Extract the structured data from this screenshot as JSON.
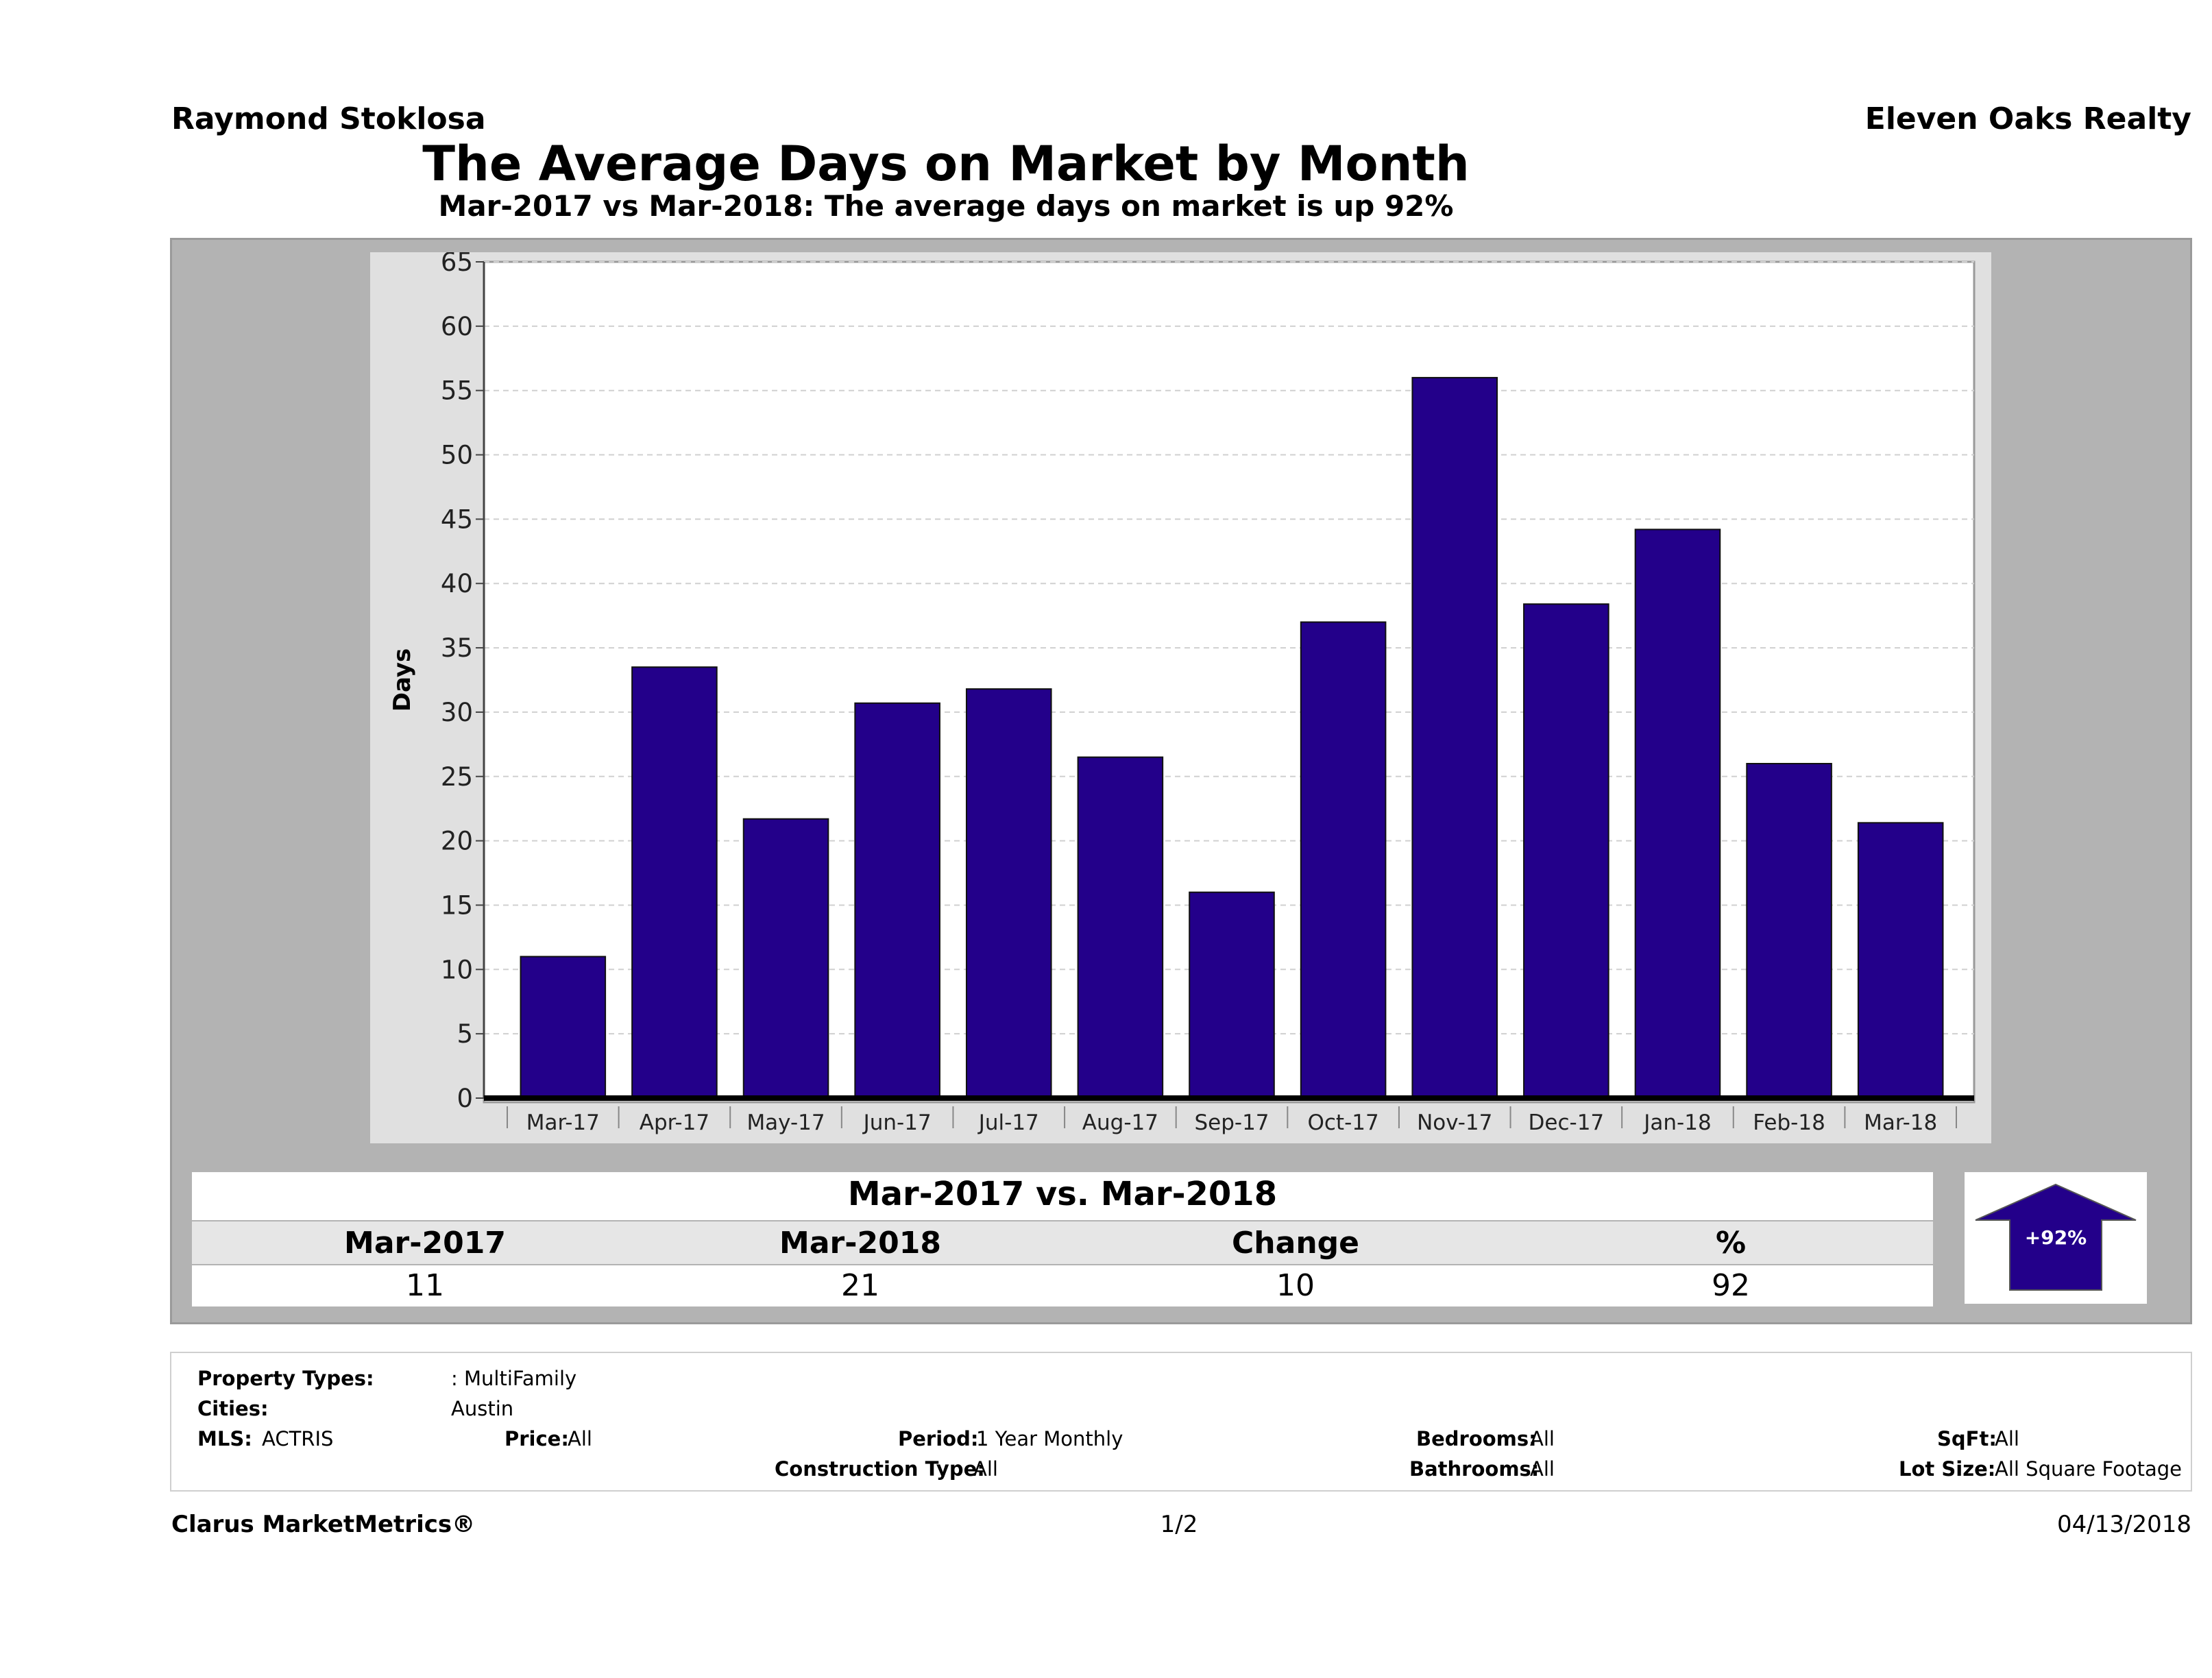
{
  "header": {
    "agent": "Raymond Stoklosa",
    "brokerage": "Eleven Oaks Realty",
    "title": "The Average Days on Market by Month",
    "subtitle": "Mar-2017 vs Mar-2018: The average days on market is up 92%"
  },
  "chart_data": {
    "type": "bar",
    "title": "The Average Days on Market by Month",
    "xlabel": "",
    "ylabel": "Days",
    "ylim": [
      0,
      65
    ],
    "yticks": [
      0,
      5,
      10,
      15,
      20,
      25,
      30,
      35,
      40,
      45,
      50,
      55,
      60,
      65
    ],
    "grid": true,
    "categories": [
      "Mar-17",
      "Apr-17",
      "May-17",
      "Jun-17",
      "Jul-17",
      "Aug-17",
      "Sep-17",
      "Oct-17",
      "Nov-17",
      "Dec-17",
      "Jan-18",
      "Feb-18",
      "Mar-18"
    ],
    "values": [
      11,
      33.5,
      21.7,
      30.7,
      31.8,
      26.5,
      16,
      37,
      56,
      38.4,
      44.2,
      26,
      21.4
    ],
    "bar_color": "#23008a"
  },
  "comparison": {
    "title": "Mar-2017 vs. Mar-2018",
    "columns": [
      "Mar-2017",
      "Mar-2018",
      "Change",
      "%"
    ],
    "values": [
      "11",
      "21",
      "10",
      "92"
    ],
    "badge": "+92%",
    "badge_color": "#23008a"
  },
  "filters": {
    "property_types_label": "Property Types:",
    "property_types_value": ": MultiFamily",
    "cities_label": "Cities:",
    "cities_value": "Austin",
    "mls_label": "MLS:",
    "mls_value": "ACTRIS",
    "price_label": "Price:",
    "price_value": "All",
    "period_label": "Period:",
    "period_value": "1 Year Monthly",
    "construction_label": "Construction Type:",
    "construction_value": "All",
    "bedrooms_label": "Bedrooms:",
    "bedrooms_value": "All",
    "bathrooms_label": "Bathrooms:",
    "bathrooms_value": "All",
    "sqft_label": "SqFt:",
    "sqft_value": "All",
    "lotsize_label": "Lot Size:",
    "lotsize_value": "All Square Footage"
  },
  "footer": {
    "brand": "Clarus MarketMetrics®",
    "page": "1/2",
    "date": "04/13/2018"
  }
}
